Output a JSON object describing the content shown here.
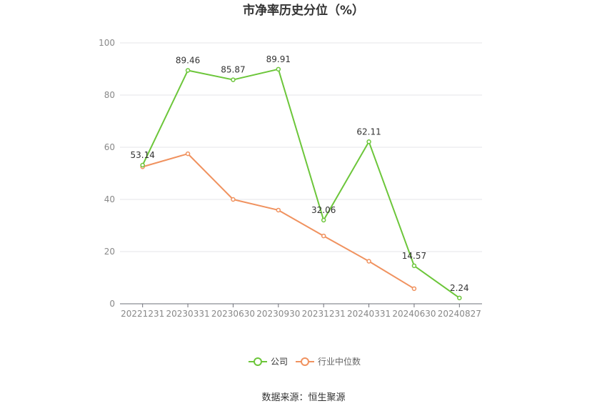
{
  "chart_data": {
    "type": "line",
    "title": "市净率历史分位（%）",
    "categories": [
      "20221231",
      "20230331",
      "20230630",
      "20230930",
      "20231231",
      "20240331",
      "20240630",
      "20240827"
    ],
    "ylim": [
      0,
      100
    ],
    "yticks": [
      0,
      20,
      40,
      60,
      80,
      100
    ],
    "grid": true,
    "legend_position": "bottom",
    "series": [
      {
        "name": "公司",
        "color": "#6cc63a",
        "values": [
          53.14,
          89.46,
          85.87,
          89.91,
          32.06,
          62.11,
          14.57,
          2.24
        ],
        "labels": [
          "53.14",
          "89.46",
          "85.87",
          "89.91",
          "32.06",
          "62.11",
          "14.57",
          "2.24"
        ]
      },
      {
        "name": "行业中位数",
        "color": "#f0925f",
        "values": [
          52.5,
          57.5,
          40.0,
          35.9,
          26.0,
          16.3,
          5.8,
          null
        ]
      }
    ],
    "source": "数据来源：恒生聚源"
  }
}
